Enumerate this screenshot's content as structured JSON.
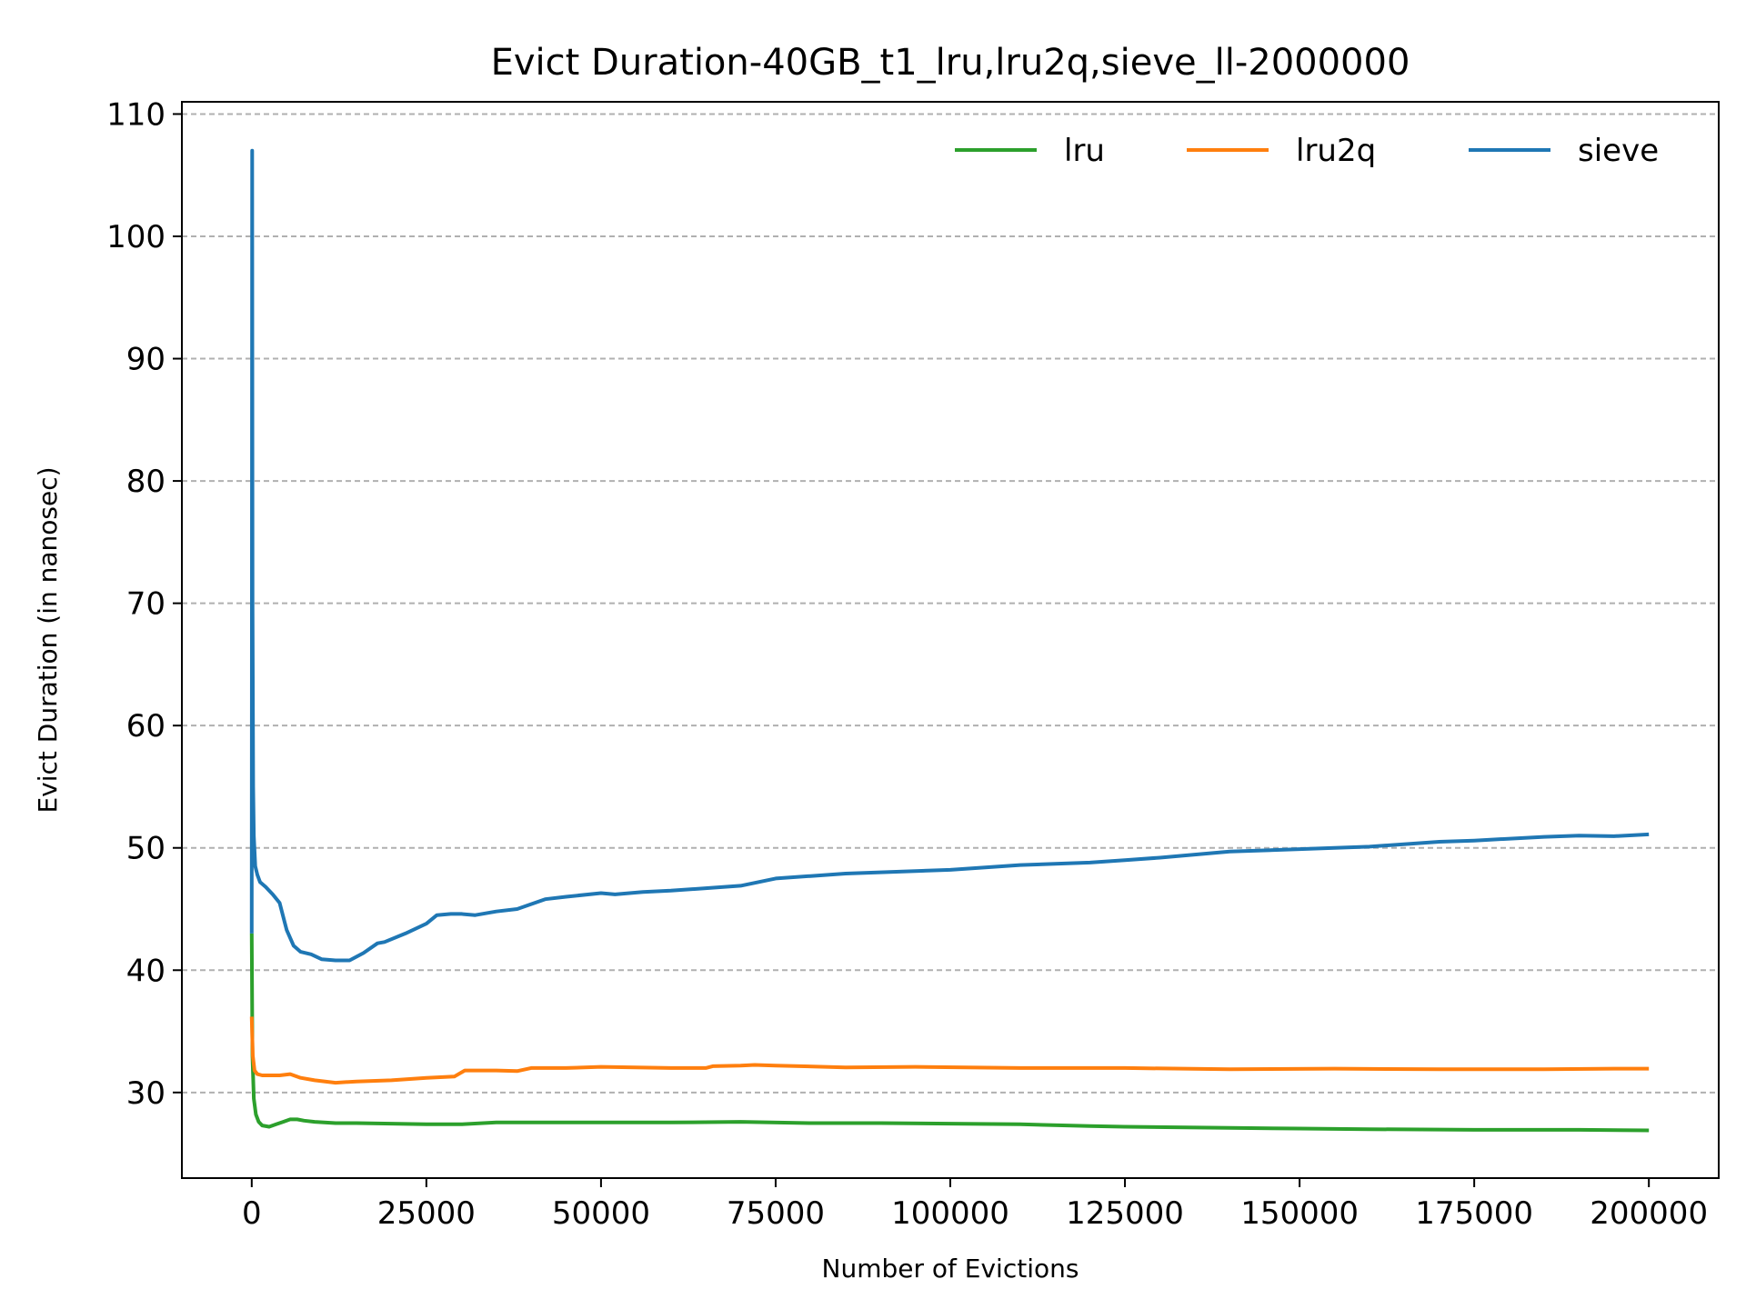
{
  "chart_data": {
    "type": "line",
    "title": "Evict Duration-40GB_t1_lru,lru2q,sieve_ll-2000000",
    "xlabel": "Number of Evictions",
    "ylabel": "Evict Duration (in nanosec)",
    "xlim": [
      -10000,
      210000
    ],
    "ylim": [
      23,
      111
    ],
    "xticks": [
      0,
      25000,
      50000,
      75000,
      100000,
      125000,
      150000,
      175000,
      200000
    ],
    "yticks": [
      30,
      40,
      50,
      60,
      70,
      80,
      90,
      100,
      110
    ],
    "grid": "horizontal-dashed",
    "legend_position": "top-right",
    "series": [
      {
        "name": "lru",
        "color": "#2ca02c",
        "x": [
          0,
          100,
          300,
          600,
          1000,
          1500,
          2500,
          3500,
          4500,
          5500,
          6500,
          7500,
          9000,
          12000,
          15000,
          20000,
          25000,
          30000,
          35000,
          40000,
          50000,
          60000,
          70000,
          80000,
          90000,
          100000,
          110000,
          120000,
          125000,
          140000,
          150000,
          160000,
          175000,
          190000,
          200000
        ],
        "y": [
          43,
          33,
          29.5,
          28.2,
          27.6,
          27.3,
          27.2,
          27.4,
          27.6,
          27.8,
          27.8,
          27.7,
          27.6,
          27.5,
          27.5,
          27.45,
          27.4,
          27.4,
          27.55,
          27.55,
          27.55,
          27.55,
          27.6,
          27.5,
          27.5,
          27.45,
          27.4,
          27.25,
          27.2,
          27.1,
          27.05,
          27.0,
          26.95,
          26.95,
          26.9
        ]
      },
      {
        "name": "lru2q",
        "color": "#ff7f0e",
        "x": [
          0,
          150,
          400,
          800,
          1500,
          2500,
          4000,
          5500,
          7000,
          9000,
          12000,
          15000,
          20000,
          25000,
          29000,
          30500,
          35000,
          38000,
          40000,
          45000,
          50000,
          60000,
          65000,
          66000,
          70000,
          72000,
          75000,
          85000,
          95000,
          110000,
          125000,
          140000,
          155000,
          170000,
          185000,
          195000,
          200000
        ],
        "y": [
          36.2,
          33,
          31.8,
          31.5,
          31.4,
          31.4,
          31.4,
          31.5,
          31.2,
          31.0,
          30.8,
          30.9,
          31.0,
          31.2,
          31.3,
          31.8,
          31.8,
          31.75,
          32.0,
          32.0,
          32.1,
          32.0,
          32.0,
          32.15,
          32.2,
          32.25,
          32.2,
          32.05,
          32.1,
          32.0,
          32.0,
          31.9,
          31.95,
          31.9,
          31.9,
          31.95,
          31.95
        ]
      },
      {
        "name": "sieve",
        "color": "#1f77b4",
        "x": [
          0,
          60,
          120,
          200,
          300,
          500,
          800,
          1200,
          2000,
          3000,
          4000,
          5000,
          6000,
          7000,
          8500,
          10000,
          12000,
          14000,
          16000,
          18000,
          19000,
          22000,
          25000,
          26500,
          28500,
          30000,
          32000,
          35000,
          38000,
          40000,
          42000,
          45000,
          50000,
          52000,
          56000,
          60000,
          65000,
          70000,
          75000,
          80000,
          85000,
          90000,
          100000,
          110000,
          120000,
          125000,
          130000,
          140000,
          150000,
          160000,
          170000,
          175000,
          185000,
          190000,
          195000,
          200000
        ],
        "y": [
          43,
          107,
          70,
          55,
          51,
          48.5,
          47.8,
          47.2,
          46.8,
          46.2,
          45.5,
          43.3,
          42.0,
          41.5,
          41.3,
          40.9,
          40.8,
          40.8,
          41.4,
          42.2,
          42.3,
          43.0,
          43.8,
          44.5,
          44.6,
          44.6,
          44.5,
          44.8,
          45.0,
          45.4,
          45.8,
          46.0,
          46.3,
          46.2,
          46.4,
          46.5,
          46.7,
          46.9,
          47.5,
          47.7,
          47.9,
          48.0,
          48.2,
          48.6,
          48.8,
          49.0,
          49.2,
          49.7,
          49.9,
          50.1,
          50.5,
          50.6,
          50.9,
          51.0,
          50.95,
          51.1
        ]
      }
    ]
  }
}
